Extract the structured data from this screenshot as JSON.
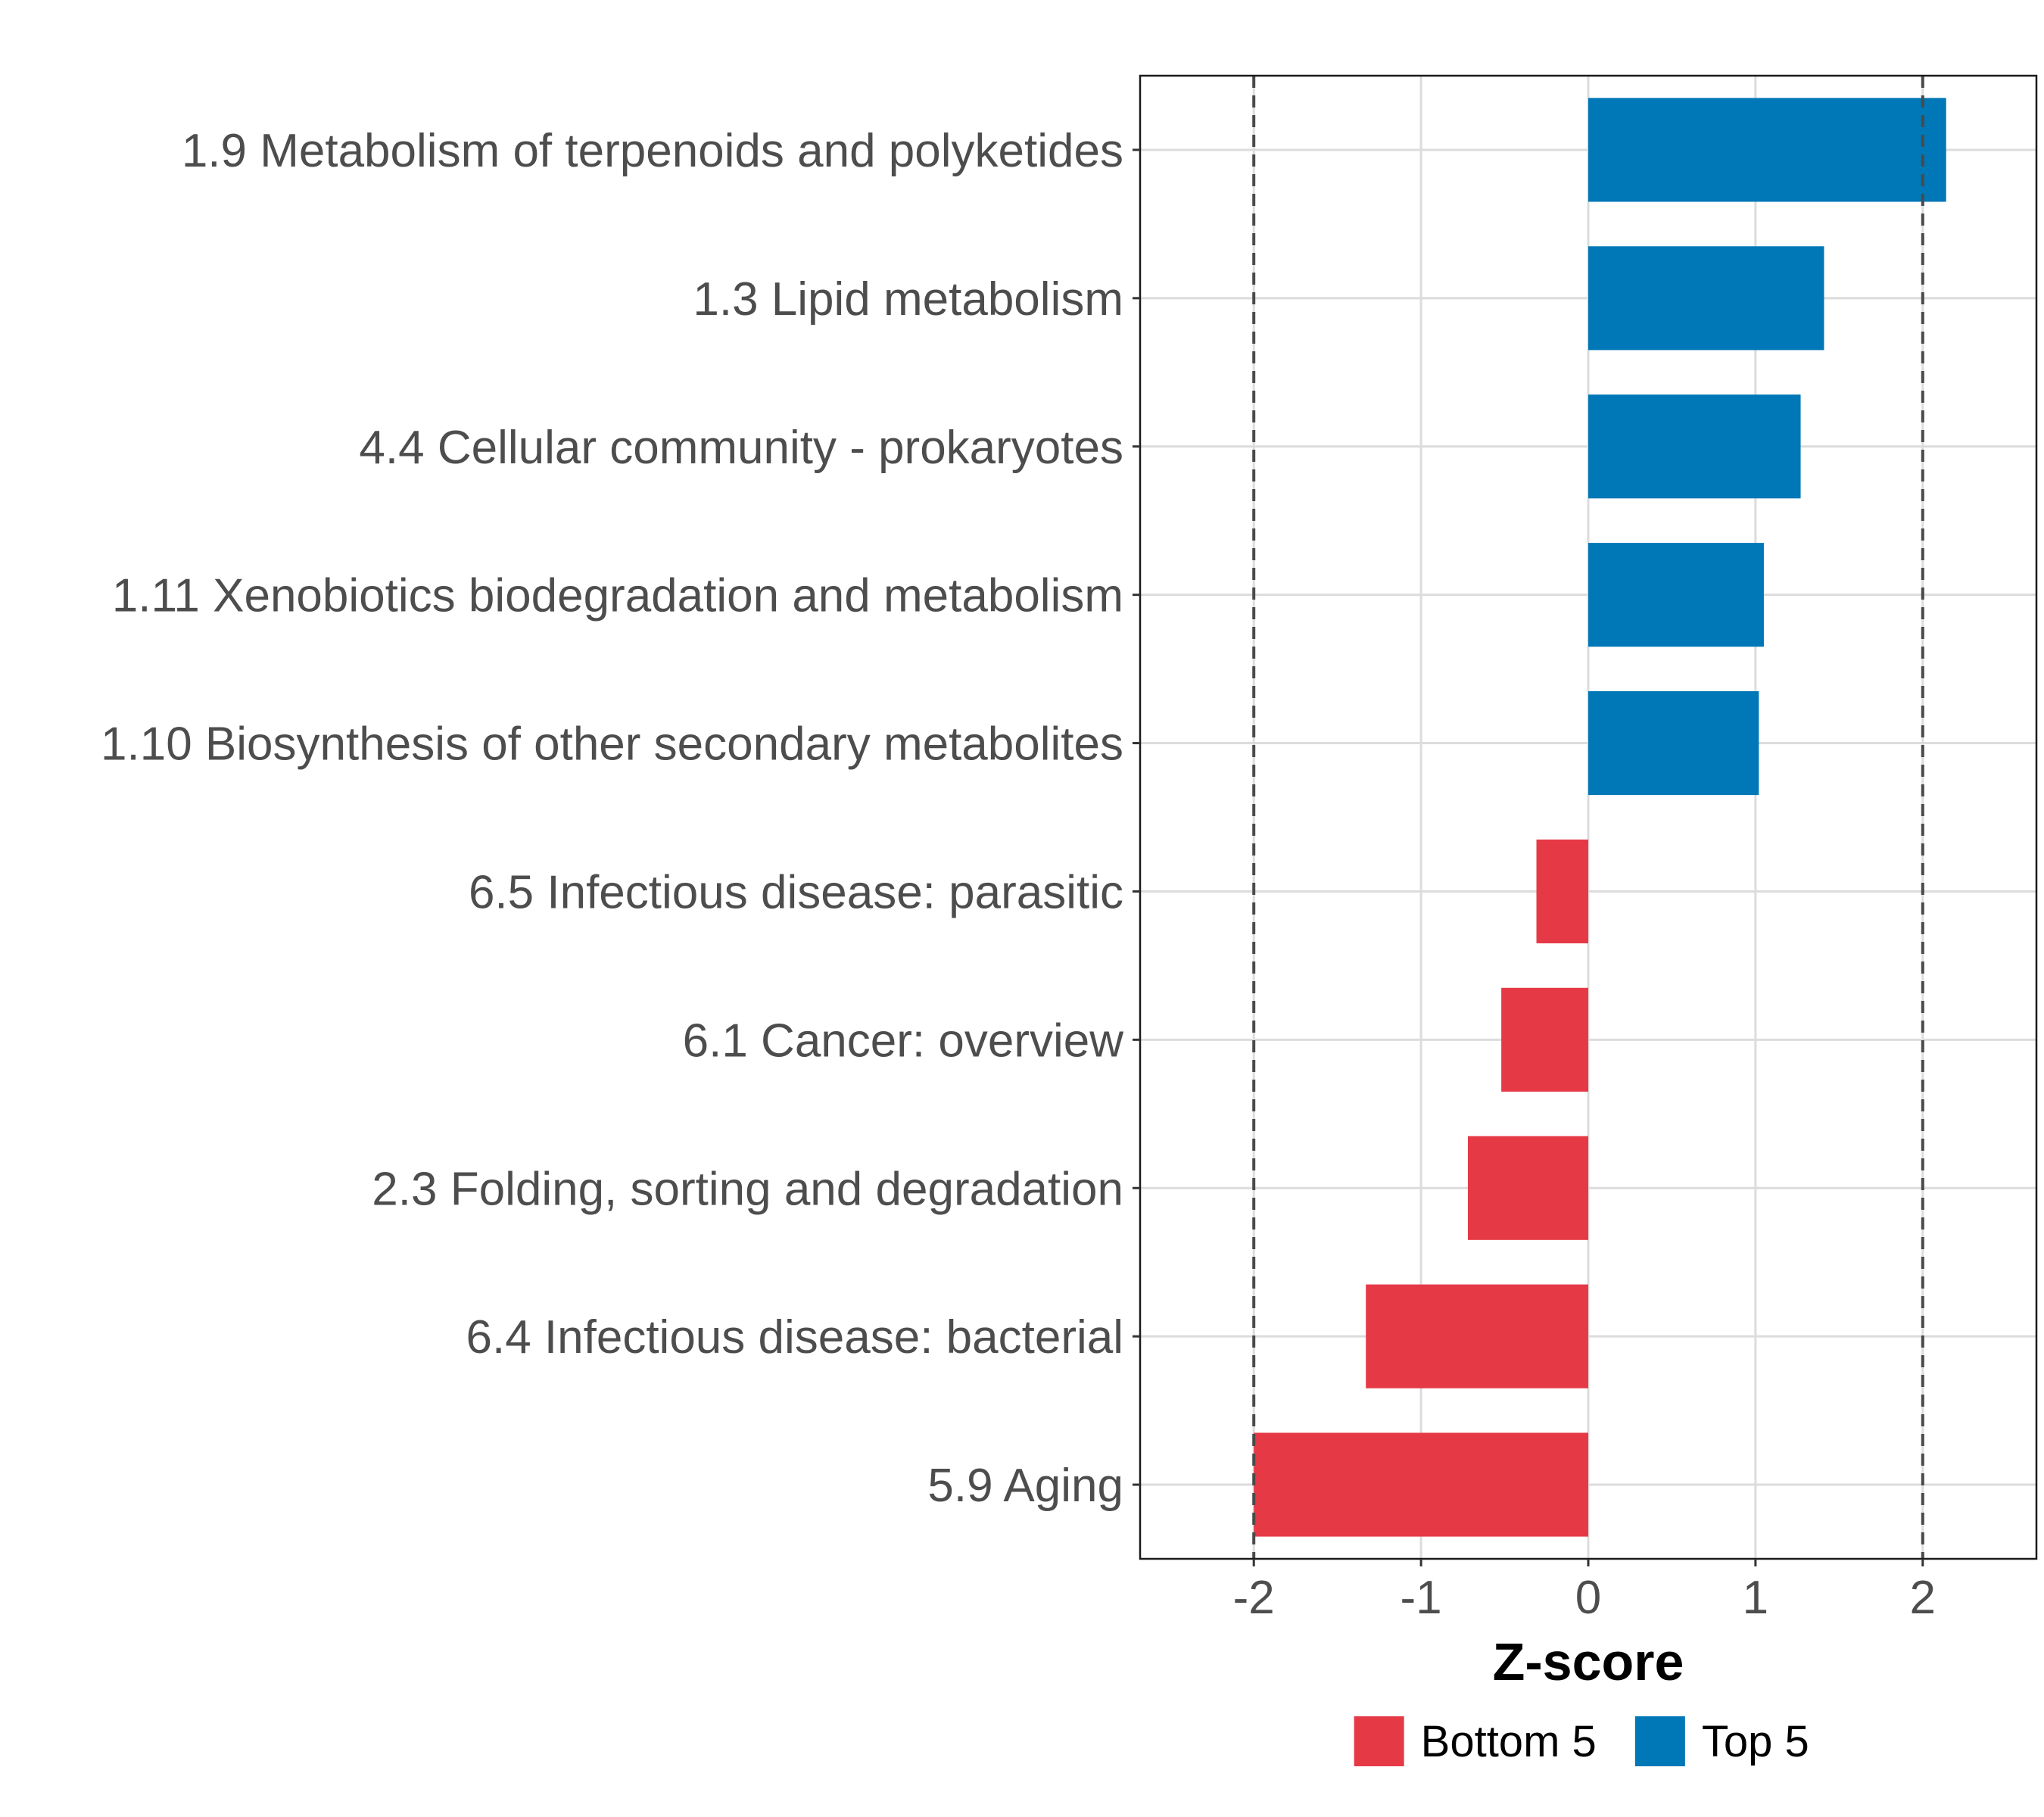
{
  "chart_data": {
    "type": "bar",
    "orientation": "horizontal",
    "categories": [
      "1.9 Metabolism of terpenoids and polyketides",
      "1.3 Lipid metabolism",
      "4.4 Cellular community - prokaryotes",
      "1.11 Xenobiotics biodegradation and metabolism",
      "1.10 Biosynthesis of other secondary metabolites",
      "6.5 Infectious disease: parasitic",
      "6.1 Cancer: overview",
      "2.3 Folding, sorting and degradation",
      "6.4 Infectious disease: bacterial",
      "5.9 Aging"
    ],
    "values": [
      2.14,
      1.41,
      1.27,
      1.05,
      1.02,
      -0.31,
      -0.52,
      -0.72,
      -1.33,
      -2.0
    ],
    "groups": [
      "Top 5",
      "Top 5",
      "Top 5",
      "Top 5",
      "Top 5",
      "Bottom 5",
      "Bottom 5",
      "Bottom 5",
      "Bottom 5",
      "Bottom 5"
    ],
    "xlabel": "Z-score",
    "ylabel": "",
    "xlim": [
      -2.68,
      2.68
    ],
    "xticks": [
      -2,
      -1,
      0,
      1,
      2
    ],
    "xtick_labels": [
      "-2",
      "-1",
      "0",
      "1",
      "2"
    ],
    "reference_lines": [
      -2,
      2
    ],
    "grid": true,
    "legend_position": "bottom",
    "legend": [
      {
        "label": "Bottom 5",
        "color": "#E63946"
      },
      {
        "label": "Top 5",
        "color": "#0077B6"
      }
    ]
  }
}
